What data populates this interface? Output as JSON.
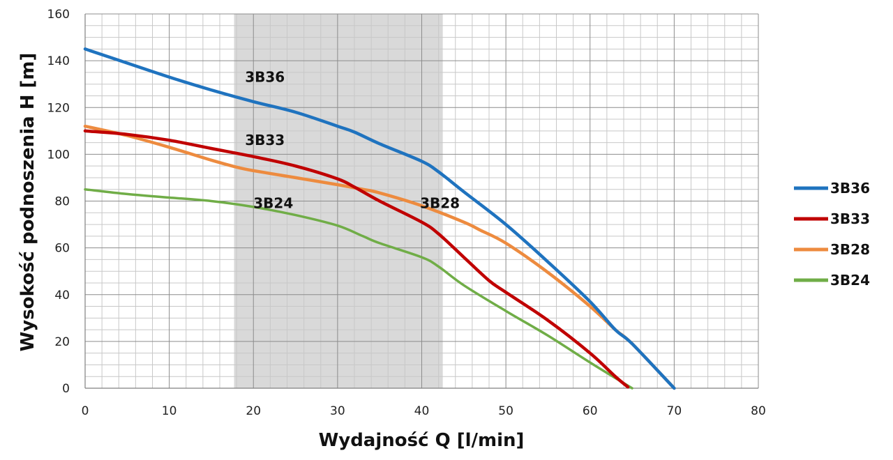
{
  "chart_data": {
    "type": "line",
    "xlabel": "Wydajność Q [l/min]",
    "ylabel": "Wysokość podnoszenia H [m]",
    "xlim": [
      0,
      80
    ],
    "ylim": [
      0,
      160
    ],
    "x_ticks": [
      "0",
      "10",
      "20",
      "30",
      "40",
      "50",
      "60",
      "70",
      "80"
    ],
    "y_ticks": [
      "0",
      "20",
      "40",
      "60",
      "80",
      "100",
      "120",
      "140",
      "160"
    ],
    "grid": true,
    "highlight_band": {
      "x_from": 17.7,
      "x_to": 42.5,
      "color": "#d9d9d9"
    },
    "legend_position": "right",
    "series": [
      {
        "name": "3B36",
        "color": "#1f73bf",
        "points": [
          [
            0,
            145
          ],
          [
            5,
            139
          ],
          [
            10,
            133
          ],
          [
            15,
            127.5
          ],
          [
            20,
            122.5
          ],
          [
            25,
            118
          ],
          [
            30,
            112
          ],
          [
            32,
            109.5
          ],
          [
            35,
            104.5
          ],
          [
            40,
            97
          ],
          [
            42,
            92.5
          ],
          [
            45,
            84
          ],
          [
            50,
            70
          ],
          [
            55,
            54
          ],
          [
            60,
            37
          ],
          [
            63,
            25
          ],
          [
            65,
            19
          ],
          [
            70,
            0
          ]
        ]
      },
      {
        "name": "3B33",
        "color": "#c00000",
        "points": [
          [
            0,
            110
          ],
          [
            5,
            108.5
          ],
          [
            10,
            106
          ],
          [
            15,
            102.5
          ],
          [
            20,
            99
          ],
          [
            25,
            95
          ],
          [
            30,
            89.5
          ],
          [
            32,
            86
          ],
          [
            35,
            80
          ],
          [
            40,
            71
          ],
          [
            42,
            66
          ],
          [
            45,
            56
          ],
          [
            48,
            46
          ],
          [
            50,
            41
          ],
          [
            55,
            29
          ],
          [
            60,
            15
          ],
          [
            63,
            5
          ],
          [
            64.5,
            0.5
          ]
        ]
      },
      {
        "name": "3B28",
        "color": "#ed8b3f",
        "points": [
          [
            0,
            112
          ],
          [
            5,
            108
          ],
          [
            10,
            103
          ],
          [
            15,
            97.5
          ],
          [
            18,
            94.5
          ],
          [
            20,
            93
          ],
          [
            25,
            90
          ],
          [
            30,
            87
          ],
          [
            33,
            85
          ],
          [
            35,
            83.5
          ],
          [
            40,
            78
          ],
          [
            45,
            71
          ],
          [
            47,
            67.5
          ],
          [
            50,
            62
          ],
          [
            55,
            49.5
          ],
          [
            60,
            35
          ],
          [
            63,
            25
          ],
          [
            65,
            19
          ],
          [
            70,
            0
          ]
        ]
      },
      {
        "name": "3B24",
        "color": "#70ad47",
        "points": [
          [
            0,
            85
          ],
          [
            5,
            83
          ],
          [
            10,
            81.5
          ],
          [
            15,
            80
          ],
          [
            20,
            77.5
          ],
          [
            25,
            74
          ],
          [
            30,
            69.5
          ],
          [
            33,
            65
          ],
          [
            35,
            62
          ],
          [
            40,
            56
          ],
          [
            42,
            52
          ],
          [
            45,
            44
          ],
          [
            50,
            33
          ],
          [
            55,
            22.5
          ],
          [
            60,
            11
          ],
          [
            65,
            0
          ]
        ]
      }
    ],
    "annotations": [
      {
        "text": "3B36",
        "x": 19,
        "y": 131
      },
      {
        "text": "3B33",
        "x": 19,
        "y": 104
      },
      {
        "text": "3B24",
        "x": 20,
        "y": 77
      },
      {
        "text": "3B28",
        "x": 39.8,
        "y": 77
      }
    ]
  }
}
